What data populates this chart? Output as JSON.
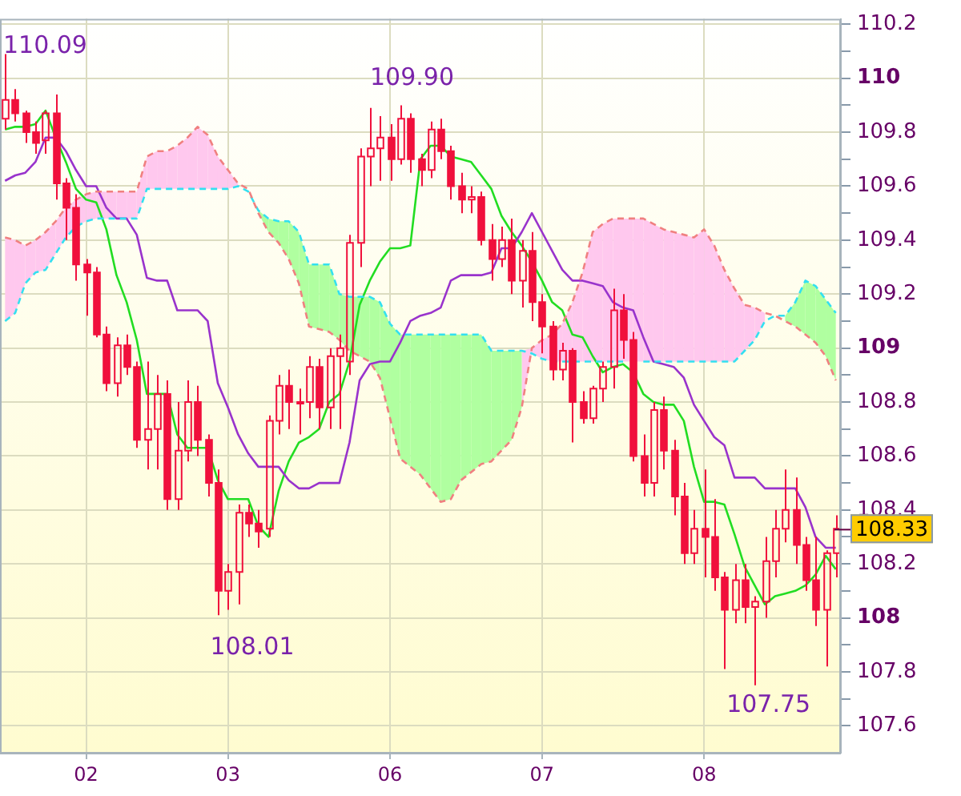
{
  "chart_data": {
    "type": "candlestick",
    "categories": [
      null,
      null,
      null,
      null,
      null,
      null,
      null,
      null,
      "02",
      null,
      null,
      null,
      null,
      null,
      null,
      null,
      null,
      null,
      null,
      null,
      null,
      null,
      "03",
      null,
      null,
      null,
      null,
      null,
      null,
      null,
      null,
      null,
      null,
      null,
      null,
      null,
      null,
      null,
      "06",
      null,
      null,
      null,
      null,
      null,
      null,
      null,
      null,
      null,
      null,
      null,
      null,
      null,
      null,
      "07",
      null,
      null,
      null,
      null,
      null,
      null,
      null,
      null,
      null,
      null,
      null,
      null,
      null,
      null,
      null,
      "08",
      null,
      null,
      null,
      null,
      null,
      null,
      null,
      null,
      null,
      null,
      null,
      null,
      null
    ],
    "ylim": [
      107.5,
      110.22
    ],
    "yticks": [
      107.6,
      {
        "value": 107.7,
        "label": null
      },
      107.8,
      {
        "value": 107.9,
        "label": null
      },
      108,
      {
        "value": 108.1,
        "label": null
      },
      108.2,
      {
        "value": 108.3,
        "label": null
      },
      108.4,
      {
        "value": 108.5,
        "label": null
      },
      108.6,
      {
        "value": 108.7,
        "label": null
      },
      108.8,
      {
        "value": 108.9,
        "label": null
      },
      109,
      {
        "value": 109.1,
        "label": null
      },
      109.2,
      {
        "value": 109.3,
        "label": null
      },
      109.4,
      {
        "value": 109.5,
        "label": null
      },
      109.6,
      {
        "value": 109.7,
        "label": null
      },
      109.8,
      {
        "value": 109.9,
        "label": null
      },
      110,
      {
        "value": 110.1,
        "label": null
      },
      110.2
    ],
    "grid": true,
    "series": [
      {
        "type": "line",
        "color": "#f08080",
        "line_style": "dashed",
        "upper": [
          109.41,
          109.4,
          109.38,
          109.4,
          109.43,
          109.47,
          109.52,
          109.55,
          109.57,
          109.58,
          109.58,
          109.58,
          109.58,
          109.58,
          109.71,
          109.73,
          109.73,
          109.75,
          109.78,
          109.82,
          109.79,
          109.71,
          109.66,
          109.61,
          null,
          null,
          null,
          null,
          null,
          null,
          null,
          null,
          null,
          null,
          null,
          null,
          null,
          null,
          null,
          null,
          null,
          null,
          null,
          null,
          null,
          null,
          null,
          null,
          null,
          null,
          null,
          108.99,
          109.0,
          109.03,
          109.05,
          109.09,
          109.17,
          109.28,
          109.43,
          109.46,
          109.48,
          109.48,
          109.48,
          109.48,
          109.46,
          109.44,
          109.43,
          109.42,
          109.41,
          109.44,
          109.38,
          109.29,
          109.22,
          109.16,
          109.15,
          109.13,
          null,
          null,
          null,
          null,
          null,
          null,
          null
        ],
        "lower": [
          109.1,
          109.13,
          109.24,
          109.28,
          109.29,
          109.35,
          109.41,
          109.45,
          109.47,
          109.48,
          109.48,
          109.48,
          109.48,
          109.48,
          109.59,
          109.59,
          109.59,
          109.59,
          109.59,
          109.59,
          109.59,
          109.59,
          109.59,
          109.6,
          null,
          null,
          null,
          null,
          null,
          null,
          null,
          null,
          null,
          null,
          null,
          null,
          null,
          null,
          null,
          null,
          null,
          null,
          null,
          null,
          null,
          null,
          null,
          null,
          null,
          null,
          null,
          108.78,
          108.98,
          108.96,
          108.95,
          108.95,
          108.95,
          108.95,
          108.95,
          108.95,
          108.95,
          108.95,
          108.95,
          108.95,
          108.95,
          108.95,
          108.95,
          108.95,
          108.95,
          108.95,
          108.95,
          108.95,
          108.95,
          108.99,
          109.03,
          109.1,
          null,
          null,
          null,
          null,
          null,
          null,
          null
        ],
        "values": [
          109.41,
          109.4,
          109.38,
          109.4,
          109.43,
          109.47,
          109.52,
          109.55,
          109.57,
          109.58,
          109.58,
          109.58,
          109.58,
          109.58,
          109.71,
          109.73,
          109.73,
          109.75,
          109.78,
          109.82,
          109.79,
          109.71,
          109.66,
          109.61,
          109.59,
          109.5,
          109.43,
          109.39,
          109.33,
          109.24,
          109.08,
          109.07,
          109.06,
          109.03,
          108.99,
          108.97,
          108.95,
          108.89,
          108.74,
          108.59,
          108.56,
          108.53,
          108.48,
          108.43,
          108.44,
          108.51,
          108.54,
          108.57,
          108.58,
          108.62,
          108.66,
          108.78,
          109.0,
          109.03,
          109.05,
          109.09,
          109.17,
          109.28,
          109.43,
          109.46,
          109.48,
          109.48,
          109.48,
          109.48,
          109.46,
          109.44,
          109.43,
          109.42,
          109.41,
          109.44,
          109.38,
          109.29,
          109.22,
          109.16,
          109.15,
          109.13,
          109.12,
          109.1,
          109.08,
          109.05,
          109.02,
          108.97,
          108.88
        ]
      },
      {
        "type": "line",
        "color": "#33e0f0",
        "line_style": "dashed",
        "upper": [
          null,
          null,
          null,
          null,
          null,
          null,
          null,
          null,
          null,
          null,
          null,
          null,
          null,
          null,
          null,
          null,
          null,
          null,
          null,
          null,
          null,
          null,
          null,
          null,
          null,
          109.51,
          109.48,
          109.47,
          109.47,
          109.43,
          109.31,
          109.31,
          109.31,
          109.2,
          109.19,
          109.19,
          109.19,
          109.17,
          109.09,
          109.05,
          109.05,
          109.05,
          109.05,
          109.05,
          109.05,
          109.05,
          109.05,
          109.05,
          108.99,
          108.99,
          108.99,
          108.99,
          null,
          null,
          null,
          null,
          null,
          null,
          null,
          null,
          null,
          null,
          null,
          null,
          null,
          null,
          null,
          null,
          null,
          null,
          null,
          null,
          null,
          null,
          null,
          null,
          null,
          109.12,
          109.17,
          109.25,
          109.23,
          109.18,
          109.13
        ],
        "lower": [
          null,
          null,
          null,
          null,
          null,
          null,
          null,
          null,
          null,
          null,
          null,
          null,
          null,
          null,
          null,
          null,
          null,
          null,
          null,
          null,
          null,
          null,
          null,
          null,
          null,
          109.5,
          109.43,
          109.39,
          109.33,
          109.24,
          109.08,
          109.07,
          109.06,
          109.03,
          108.99,
          108.97,
          108.95,
          108.89,
          108.74,
          108.59,
          108.56,
          108.53,
          108.48,
          108.43,
          108.44,
          108.51,
          108.54,
          108.57,
          108.58,
          108.62,
          108.66,
          108.78,
          null,
          null,
          null,
          null,
          null,
          null,
          null,
          null,
          null,
          null,
          null,
          null,
          null,
          null,
          null,
          null,
          null,
          null,
          null,
          null,
          null,
          null,
          null,
          null,
          null,
          109.1,
          109.08,
          109.05,
          109.02,
          108.97,
          108.88
        ],
        "values": [
          109.1,
          109.13,
          109.24,
          109.28,
          109.29,
          109.35,
          109.41,
          109.45,
          109.47,
          109.48,
          109.48,
          109.48,
          109.48,
          109.48,
          109.59,
          109.59,
          109.59,
          109.59,
          109.59,
          109.59,
          109.59,
          109.59,
          109.59,
          109.6,
          109.58,
          109.51,
          109.48,
          109.47,
          109.47,
          109.43,
          109.31,
          109.31,
          109.31,
          109.2,
          109.19,
          109.19,
          109.19,
          109.17,
          109.09,
          109.05,
          109.05,
          109.05,
          109.05,
          109.05,
          109.05,
          109.05,
          109.05,
          109.05,
          108.99,
          108.99,
          108.99,
          108.99,
          108.98,
          108.96,
          108.95,
          108.95,
          108.95,
          108.95,
          108.95,
          108.95,
          108.95,
          108.95,
          null,
          108.95,
          108.95,
          108.95,
          108.95,
          108.95,
          108.95,
          108.95,
          108.95,
          108.95,
          108.95,
          108.99,
          109.03,
          109.1,
          109.12,
          109.12,
          109.17,
          109.25,
          109.23,
          109.18,
          109.13
        ]
      },
      {
        "type": "line",
        "color": "#9933cc",
        "values": [
          109.62,
          109.64,
          109.65,
          109.69,
          109.78,
          109.78,
          109.73,
          109.66,
          109.6,
          109.6,
          109.52,
          109.48,
          109.48,
          109.42,
          109.26,
          109.25,
          109.25,
          109.14,
          109.14,
          109.14,
          109.1,
          108.87,
          108.78,
          108.68,
          108.61,
          108.56,
          108.56,
          108.56,
          108.51,
          108.48,
          108.48,
          108.5,
          108.5,
          108.5,
          108.65,
          108.88,
          108.94,
          108.95,
          108.95,
          109.02,
          109.1,
          109.12,
          109.13,
          109.15,
          109.25,
          109.27,
          109.27,
          109.27,
          109.28,
          109.37,
          109.37,
          109.43,
          109.5,
          109.43,
          109.36,
          109.29,
          109.25,
          109.25,
          109.24,
          109.23,
          109.17,
          109.15,
          109.14,
          109.04,
          108.95,
          108.94,
          108.93,
          108.89,
          108.79,
          108.73,
          108.67,
          108.64,
          108.52,
          108.52,
          108.52,
          108.48,
          108.48,
          108.48,
          108.48,
          108.41,
          108.3,
          108.26,
          108.26
        ]
      },
      {
        "type": "line",
        "color": "#22dd22",
        "values": [
          109.81,
          109.82,
          109.82,
          109.83,
          109.88,
          109.78,
          109.69,
          109.59,
          109.55,
          109.54,
          109.44,
          109.27,
          109.17,
          109.03,
          108.83,
          108.83,
          108.83,
          108.68,
          108.63,
          108.63,
          108.63,
          108.51,
          108.44,
          108.44,
          108.44,
          108.34,
          108.3,
          108.47,
          108.58,
          108.65,
          108.67,
          108.7,
          108.8,
          108.83,
          108.95,
          109.16,
          109.25,
          109.32,
          109.37,
          109.37,
          109.38,
          109.7,
          109.75,
          109.75,
          109.71,
          109.7,
          109.69,
          109.64,
          109.59,
          109.49,
          109.43,
          109.38,
          109.32,
          109.25,
          109.17,
          109.14,
          109.05,
          109.04,
          108.97,
          108.91,
          108.93,
          108.94,
          108.91,
          108.83,
          108.8,
          108.79,
          108.79,
          108.73,
          108.56,
          108.43,
          108.43,
          108.42,
          108.31,
          108.19,
          108.12,
          108.05,
          108.08,
          108.09,
          108.1,
          108.12,
          108.16,
          108.23,
          108.18
        ]
      },
      {
        "type": "candlestick",
        "color": "#f0103c",
        "ohlc": [
          [
            109.85,
            110.09,
            109.81,
            109.92
          ],
          [
            109.92,
            109.96,
            109.84,
            109.87
          ],
          [
            109.87,
            109.88,
            109.76,
            109.8
          ],
          [
            109.8,
            109.84,
            109.72,
            109.76
          ],
          [
            109.77,
            109.88,
            109.72,
            109.87
          ],
          [
            109.87,
            109.94,
            109.55,
            109.61
          ],
          [
            109.61,
            109.63,
            109.4,
            109.52
          ],
          [
            109.52,
            109.57,
            109.25,
            109.31
          ],
          [
            109.31,
            109.33,
            109.12,
            109.28
          ],
          [
            109.28,
            109.3,
            109.04,
            109.05
          ],
          [
            109.05,
            109.08,
            108.84,
            108.87
          ],
          [
            108.87,
            109.04,
            108.82,
            109.01
          ],
          [
            109.01,
            109.05,
            108.9,
            108.93
          ],
          [
            108.93,
            108.95,
            108.63,
            108.66
          ],
          [
            108.66,
            108.95,
            108.55,
            108.7
          ],
          [
            108.7,
            108.9,
            108.55,
            108.83
          ],
          [
            108.83,
            108.88,
            108.4,
            108.44
          ],
          [
            108.44,
            108.8,
            108.4,
            108.62
          ],
          [
            108.62,
            108.88,
            108.58,
            108.8
          ],
          [
            108.8,
            108.86,
            108.6,
            108.66
          ],
          [
            108.66,
            108.68,
            108.45,
            108.5
          ],
          [
            108.5,
            108.55,
            108.01,
            108.1
          ],
          [
            108.1,
            108.2,
            108.03,
            108.17
          ],
          [
            108.17,
            108.42,
            108.05,
            108.39
          ],
          [
            108.39,
            108.42,
            108.3,
            108.35
          ],
          [
            108.35,
            108.4,
            108.26,
            108.32
          ],
          [
            108.33,
            108.75,
            108.3,
            108.73
          ],
          [
            108.73,
            108.9,
            108.68,
            108.86
          ],
          [
            108.86,
            108.92,
            108.7,
            108.8
          ],
          [
            108.8,
            108.85,
            108.68,
            108.8
          ],
          [
            108.8,
            108.97,
            108.74,
            108.93
          ],
          [
            108.93,
            108.96,
            108.7,
            108.78
          ],
          [
            108.78,
            109.0,
            108.7,
            108.97
          ],
          [
            108.97,
            109.05,
            108.7,
            109.0
          ],
          [
            108.95,
            109.42,
            108.9,
            109.39
          ],
          [
            109.39,
            109.74,
            109.3,
            109.71
          ],
          [
            109.71,
            109.89,
            109.6,
            109.74
          ],
          [
            109.74,
            109.86,
            109.62,
            109.78
          ],
          [
            109.78,
            109.83,
            109.62,
            109.7
          ],
          [
            109.7,
            109.9,
            109.68,
            109.85
          ],
          [
            109.85,
            109.87,
            109.65,
            109.7
          ],
          [
            109.7,
            109.72,
            109.6,
            109.66
          ],
          [
            109.66,
            109.84,
            109.63,
            109.81
          ],
          [
            109.81,
            109.85,
            109.7,
            109.73
          ],
          [
            109.73,
            109.75,
            109.55,
            109.6
          ],
          [
            109.6,
            109.65,
            109.5,
            109.55
          ],
          [
            109.55,
            109.6,
            109.5,
            109.56
          ],
          [
            109.56,
            109.58,
            109.38,
            109.4
          ],
          [
            109.4,
            109.46,
            109.25,
            109.33
          ],
          [
            109.33,
            109.45,
            109.3,
            109.4
          ],
          [
            109.4,
            109.48,
            109.2,
            109.25
          ],
          [
            109.25,
            109.4,
            109.15,
            109.36
          ],
          [
            109.36,
            109.43,
            109.1,
            109.17
          ],
          [
            109.17,
            109.2,
            108.98,
            109.08
          ],
          [
            109.08,
            109.1,
            108.88,
            108.92
          ],
          [
            108.92,
            109.02,
            108.88,
            108.99
          ],
          [
            108.99,
            109.0,
            108.65,
            108.8
          ],
          [
            108.8,
            108.84,
            108.72,
            108.74
          ],
          [
            108.74,
            108.86,
            108.72,
            108.85
          ],
          [
            108.85,
            108.95,
            108.8,
            108.93
          ],
          [
            108.93,
            109.22,
            108.85,
            109.14
          ],
          [
            109.14,
            109.2,
            108.96,
            109.03
          ],
          [
            109.03,
            109.06,
            108.58,
            108.6
          ],
          [
            108.6,
            108.68,
            108.45,
            108.5
          ],
          [
            108.5,
            108.8,
            108.45,
            108.77
          ],
          [
            108.77,
            108.82,
            108.55,
            108.62
          ],
          [
            108.62,
            108.66,
            108.38,
            108.45
          ],
          [
            108.45,
            108.5,
            108.2,
            108.24
          ],
          [
            108.24,
            108.4,
            108.2,
            108.33
          ],
          [
            108.33,
            108.55,
            108.15,
            108.3
          ],
          [
            108.3,
            108.44,
            108.1,
            108.15
          ],
          [
            108.15,
            108.17,
            107.81,
            108.03
          ],
          [
            108.03,
            108.2,
            107.98,
            108.14
          ],
          [
            108.14,
            108.2,
            107.98,
            108.04
          ],
          [
            108.04,
            108.08,
            107.75,
            108.06
          ],
          [
            108.06,
            108.3,
            108.0,
            108.21
          ],
          [
            108.21,
            108.4,
            108.15,
            108.33
          ],
          [
            108.33,
            108.55,
            108.28,
            108.4
          ],
          [
            108.4,
            108.52,
            108.2,
            108.27
          ],
          [
            108.27,
            108.3,
            108.1,
            108.14
          ],
          [
            108.14,
            108.3,
            107.97,
            108.03
          ],
          [
            108.03,
            108.25,
            107.82,
            108.24
          ],
          [
            108.24,
            108.38,
            108.15,
            108.33
          ]
        ]
      }
    ],
    "annotations": [
      "110.09",
      "109.90",
      "108.01",
      "107.75",
      "108.33"
    ]
  }
}
